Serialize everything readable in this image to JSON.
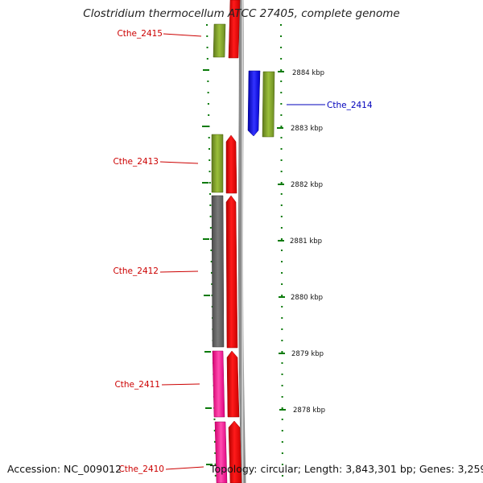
{
  "title": "Clostridium thermocellum ATCC 27405, complete genome",
  "footer": {
    "accession": "Accession: NC_009012",
    "topology": "Topology: circular; Length: 3,843,301 bp; Genes: 3,259"
  },
  "colors": {
    "label_forward": "#cc0000",
    "label_reverse": "#0000bb",
    "tick": "#0a7a0a",
    "backbone": "#8c8c8c"
  },
  "genes": [
    {
      "label": "Cthe_2415",
      "strand": "reverse",
      "style": "olive"
    },
    {
      "label": "Cthe_2414",
      "strand": "forward",
      "style": "blue"
    },
    {
      "label": "Cthe_2413",
      "strand": "reverse",
      "style": "olive"
    },
    {
      "label": "Cthe_2412",
      "strand": "reverse",
      "style": "gray"
    },
    {
      "label": "Cthe_2411",
      "strand": "reverse",
      "style": "pink"
    },
    {
      "label": "Cthe_2410",
      "strand": "reverse",
      "style": "pink"
    }
  ],
  "scale_labels": [
    "2884 kbp",
    "2883 kbp",
    "2882 kbp",
    "2881 kbp",
    "2880 kbp",
    "2879 kbp",
    "2878 kbp"
  ]
}
